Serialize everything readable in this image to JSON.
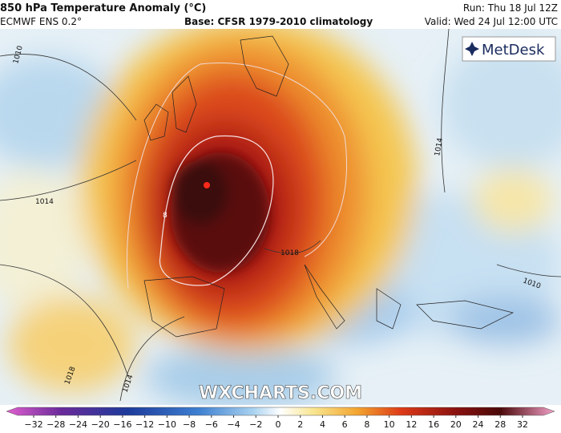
{
  "header": {
    "title": "850 hPa Temperature Anomaly (°C)",
    "model": "ECMWF ENS 0.2°",
    "base": "Base: CFSR 1979-2010 climatology",
    "run": "Run: Thu 18 Jul 12Z",
    "valid": "Valid: Wed 24 Jul 12:00 UTC"
  },
  "logo": "MetDesk",
  "watermark": "WXCHARTS.COM",
  "contour_labels": [
    "1010",
    "1014",
    "1014",
    "1018",
    "1018",
    "1014",
    "8",
    "1010"
  ],
  "colorbar": {
    "ticks": [
      "−32",
      "−28",
      "−24",
      "−20",
      "−16",
      "−12",
      "−10",
      "−8",
      "−6",
      "−4",
      "−2",
      "0",
      "2",
      "4",
      "6",
      "8",
      "10",
      "12",
      "16",
      "20",
      "24",
      "28",
      "32"
    ]
  }
}
